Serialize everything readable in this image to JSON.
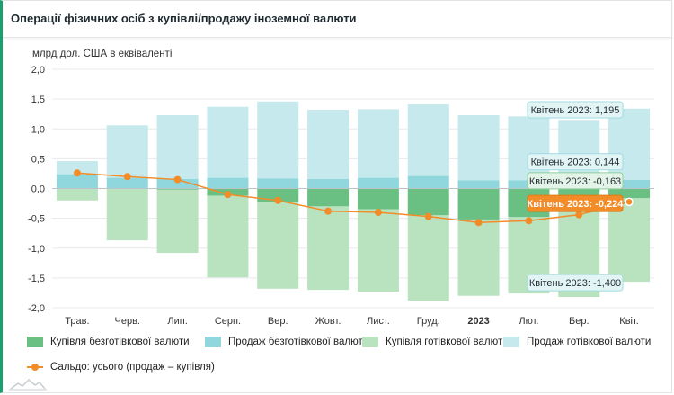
{
  "title": "Операції фізичних осіб з купівлі/продажу іноземної валюти",
  "chart_data": {
    "type": "bar",
    "stacked": true,
    "ylabel": "млрд дол. США в еквіваленті",
    "ylim": [
      -2.0,
      2.0
    ],
    "yticks": [
      "2,0",
      "1,5",
      "1,0",
      "0,5",
      "0,0",
      "-0,5",
      "-1,0",
      "-1,5",
      "-2,0"
    ],
    "categories": [
      "Трав.",
      "Черв.",
      "Лип.",
      "Серп.",
      "Вер.",
      "Жовт.",
      "Лист.",
      "Груд.",
      "2023",
      "Лют.",
      "Бер.",
      "Квіт."
    ],
    "bold_categories": [
      "2023"
    ],
    "series": [
      {
        "name": "Купівля безготівкової валюти",
        "color": "#6abf82",
        "values": [
          -0.005,
          -0.01,
          -0.02,
          -0.12,
          -0.22,
          -0.3,
          -0.35,
          -0.45,
          -0.52,
          -0.48,
          -0.3,
          -0.163
        ]
      },
      {
        "name": "Продаж безготівкової валюти",
        "color": "#8fd7dc",
        "values": [
          0.24,
          0.18,
          0.16,
          0.18,
          0.17,
          0.16,
          0.18,
          0.21,
          0.14,
          0.14,
          0.15,
          0.144
        ]
      },
      {
        "name": "Купівля готівкової валюти",
        "color": "#b9e2bf",
        "values": [
          -0.195,
          -0.86,
          -1.06,
          -1.37,
          -1.46,
          -1.4,
          -1.38,
          -1.43,
          -1.28,
          -1.28,
          -1.52,
          -1.4
        ]
      },
      {
        "name": "Продаж готівкової валюти",
        "color": "#c5e9ec",
        "values": [
          0.22,
          0.88,
          1.07,
          1.19,
          1.29,
          1.16,
          1.15,
          1.2,
          1.09,
          1.07,
          1.0,
          1.195
        ]
      }
    ],
    "line": {
      "name": "Сальдо: усього (продаж – купівля)",
      "color": "#f28c28",
      "values": [
        0.26,
        0.2,
        0.15,
        -0.1,
        -0.2,
        -0.38,
        -0.4,
        -0.47,
        -0.57,
        -0.54,
        -0.44,
        -0.224
      ]
    },
    "grid": "horizontal",
    "legend_position": "bottom",
    "tooltips": [
      {
        "text": "Квітень 2023: 1,195",
        "value": 1.195,
        "type": "bar"
      },
      {
        "text": "Квітень 2023: 0,144",
        "value": 0.144,
        "type": "bar"
      },
      {
        "text": "Квітень 2023: -0,163",
        "value": -0.163,
        "type": "bar"
      },
      {
        "text": "Квітень 2023: -0,224",
        "value": -0.224,
        "type": "line"
      },
      {
        "text": "Квітень 2023: -1,400",
        "value": -1.4,
        "type": "bar"
      }
    ]
  }
}
